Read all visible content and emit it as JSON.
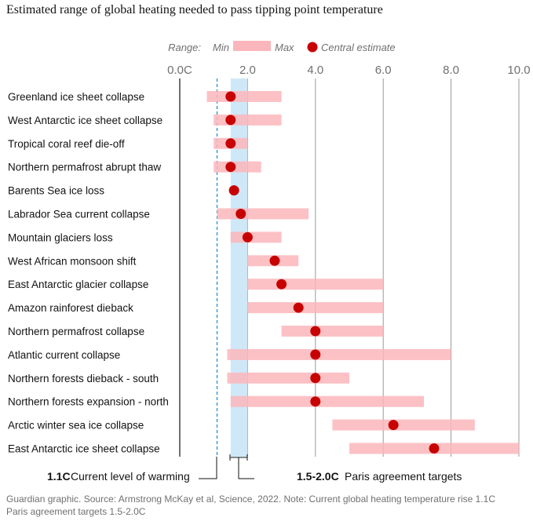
{
  "title": "Estimated range of global heating needed to pass tipping point temperature",
  "legend": {
    "range_label": "Range:",
    "min_label": "Min",
    "max_label": "Max",
    "central_label": "Central estimate"
  },
  "annotations": {
    "current_value": "1.1C",
    "current_label": "Current level of warming",
    "paris_value": "1.5-2.0C",
    "paris_label": "Paris agreement targets"
  },
  "footer": {
    "line1": "Guardian graphic. Source: Armstrong McKay et al, Science, 2022. Note: Current global heating temperature rise 1.1C",
    "line2": "Paris agreement targets 1.5-2.0C"
  },
  "colors": {
    "range_bar": "#fbb6bb",
    "central_dot": "#c70000",
    "paris_band": "#bfe0f5",
    "current_line": "#2a8fd1",
    "gridline": "#999999"
  },
  "chart_data": {
    "type": "range-dot",
    "title": "Estimated range of global heating needed to pass tipping point temperature",
    "xlabel": "",
    "xlim": [
      0,
      10
    ],
    "xticks": [
      0,
      2,
      4,
      6,
      8,
      10
    ],
    "xtick_labels": [
      "0.0C",
      "2.0",
      "4.0",
      "6.0",
      "8.0",
      "10.0"
    ],
    "grid": true,
    "legend_position": "top",
    "paris_band": [
      1.5,
      2.0
    ],
    "current_warming": 1.1,
    "categories": [
      "Greenland ice sheet collapse",
      "West Antarctic ice sheet collapse",
      "Tropical coral reef die-off",
      "Northern permafrost abrupt thaw",
      "Barents Sea ice loss",
      "Labrador Sea current collapse",
      "Mountain glaciers loss",
      "West African monsoon shift",
      "East Antarctic glacier collapse",
      "Amazon rainforest dieback",
      "Northern permafrost collapse",
      "Atlantic current collapse",
      "Northern forests dieback - south",
      "Northern forests expansion - north",
      "Arctic winter sea ice collapse",
      "East Antarctic ice sheet collapse"
    ],
    "min": [
      0.8,
      1.0,
      1.0,
      1.0,
      null,
      1.1,
      1.5,
      2.0,
      2.0,
      2.0,
      3.0,
      1.4,
      1.4,
      1.5,
      4.5,
      5.0
    ],
    "max": [
      3.0,
      3.0,
      2.0,
      2.4,
      null,
      3.8,
      3.0,
      3.5,
      6.0,
      6.0,
      6.0,
      8.0,
      5.0,
      7.2,
      8.7,
      10.0
    ],
    "central": [
      1.5,
      1.5,
      1.5,
      1.5,
      1.6,
      1.8,
      2.0,
      2.8,
      3.0,
      3.5,
      4.0,
      4.0,
      4.0,
      4.0,
      6.3,
      7.5
    ]
  }
}
